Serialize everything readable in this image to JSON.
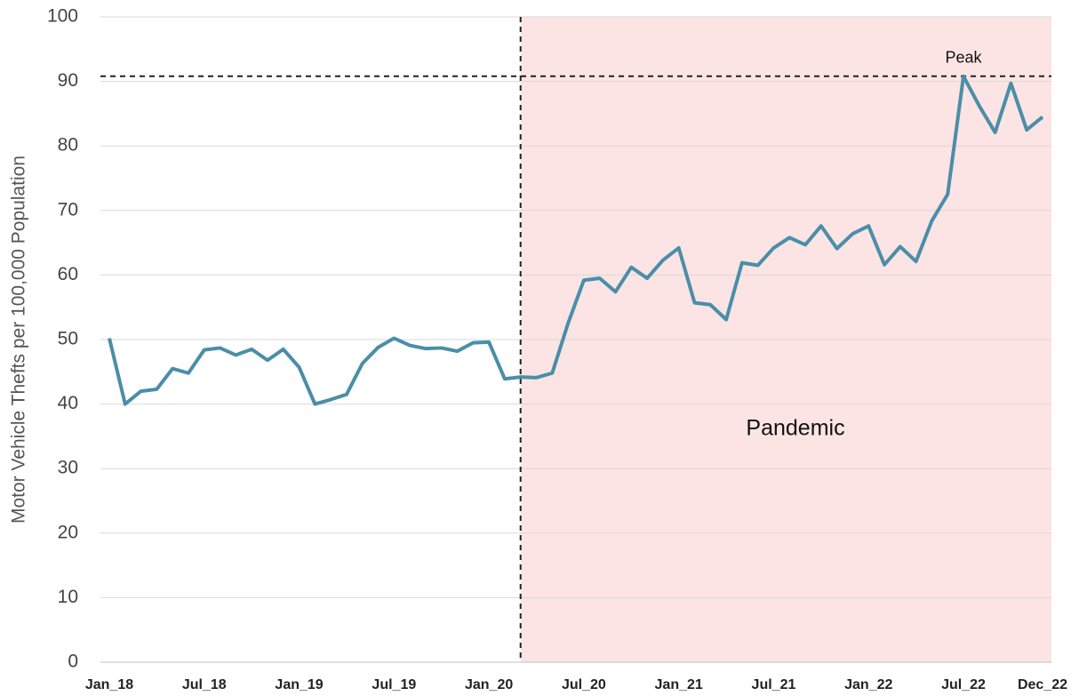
{
  "chart_data": {
    "type": "line",
    "y_label": "Motor Vehicle Thefts per 100,000 Population",
    "categories": [
      "Jan_18",
      null,
      null,
      null,
      null,
      null,
      "Jul_18",
      null,
      null,
      null,
      null,
      null,
      "Jan_19",
      null,
      null,
      null,
      null,
      null,
      "Jul_19",
      null,
      null,
      null,
      null,
      null,
      "Jan_20",
      null,
      null,
      null,
      null,
      null,
      "Jul_20",
      null,
      null,
      null,
      null,
      null,
      "Jan_21",
      null,
      null,
      null,
      null,
      null,
      "Jul_21",
      null,
      null,
      null,
      null,
      null,
      "Jan_22",
      null,
      null,
      null,
      null,
      null,
      "Jul_22",
      null,
      null,
      null,
      null,
      "Dec_22"
    ],
    "series": [
      {
        "name": "Motor Vehicle Thefts",
        "color": "#4a8ea8",
        "values": [
          50.2,
          40,
          42,
          42.3,
          45.5,
          44.8,
          48.4,
          48.7,
          47.6,
          48.5,
          46.8,
          48.5,
          45.7,
          40,
          40.7,
          41.5,
          46.3,
          48.8,
          50.2,
          49.1,
          48.6,
          48.7,
          48.2,
          49.5,
          49.6,
          43.9,
          44.2,
          44.1,
          44.8,
          52.5,
          59.2,
          59.5,
          57.4,
          61.2,
          59.5,
          62.3,
          64.2,
          55.7,
          55.4,
          53.1,
          61.9,
          61.5,
          64.2,
          65.8,
          64.7,
          67.6,
          64.1,
          66.4,
          67.6,
          61.6,
          64.4,
          62.1,
          68.4,
          72.5,
          90.8,
          86.2,
          82.1,
          89.7,
          82.5,
          84.5
        ]
      }
    ],
    "ylim": [
      0,
      100
    ],
    "yticks": [
      0,
      10,
      20,
      30,
      40,
      50,
      60,
      70,
      80,
      90,
      100
    ],
    "grid": true,
    "peak": {
      "label": "Peak",
      "value": 90.8
    },
    "shaded_region": {
      "label": "Pandemic",
      "start": 26,
      "color": "#fce4e4"
    }
  }
}
